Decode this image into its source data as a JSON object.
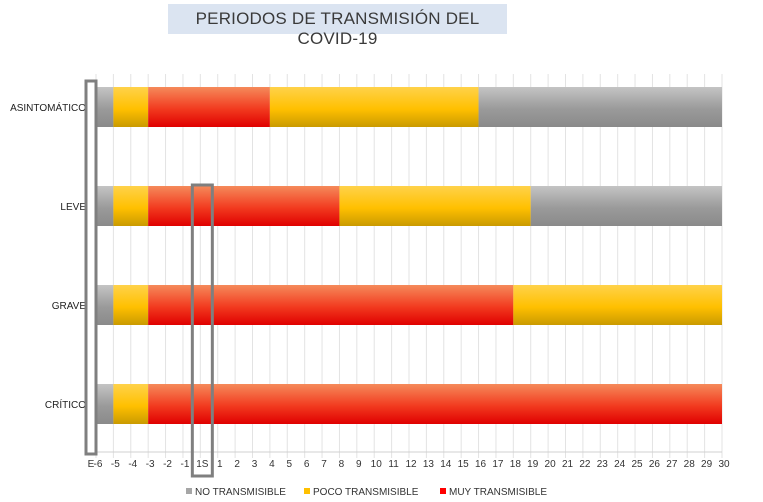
{
  "chart_data": {
    "type": "bar",
    "orientation": "horizontal-stacked",
    "title": "PERIODOS DE TRANSMISIÓN DEL COVID-19",
    "categories": [
      "ASINTOMÁTICO",
      "LEVE",
      "GRAVE",
      "CRÍTICO"
    ],
    "x_ticks": [
      "-6",
      "-5",
      "-4",
      "-3",
      "-2",
      "-1",
      "1S",
      "1",
      "2",
      "3",
      "4",
      "5",
      "6",
      "7",
      "8",
      "9",
      "10",
      "11",
      "12",
      "13",
      "14",
      "15",
      "16",
      "17",
      "18",
      "19",
      "20",
      "21",
      "22",
      "23",
      "24",
      "25",
      "26",
      "27",
      "28",
      "29",
      "30"
    ],
    "x_tick_prefix": "E",
    "series": [
      {
        "name": "NO TRANSMISIBLE",
        "color": "#a6a6a6"
      },
      {
        "name": "POCO TRANSMISIBLE",
        "color": "#ffc000"
      },
      {
        "name": "MUY TRANSMISIBLE",
        "color": "#ff0000"
      }
    ],
    "segments": [
      [
        {
          "series": "NO TRANSMISIBLE",
          "start": -6,
          "end": -5
        },
        {
          "series": "POCO TRANSMISIBLE",
          "start": -5,
          "end": -3
        },
        {
          "series": "MUY TRANSMISIBLE",
          "start": -3,
          "end": 4
        },
        {
          "series": "POCO TRANSMISIBLE",
          "start": 4,
          "end": 16
        },
        {
          "series": "NO TRANSMISIBLE",
          "start": 16,
          "end": 30
        }
      ],
      [
        {
          "series": "NO TRANSMISIBLE",
          "start": -6,
          "end": -5
        },
        {
          "series": "POCO TRANSMISIBLE",
          "start": -5,
          "end": -3
        },
        {
          "series": "MUY TRANSMISIBLE",
          "start": -3,
          "end": 8
        },
        {
          "series": "POCO TRANSMISIBLE",
          "start": 8,
          "end": 19
        },
        {
          "series": "NO TRANSMISIBLE",
          "start": 19,
          "end": 30
        }
      ],
      [
        {
          "series": "NO TRANSMISIBLE",
          "start": -6,
          "end": -5
        },
        {
          "series": "POCO TRANSMISIBLE",
          "start": -5,
          "end": -3
        },
        {
          "series": "MUY TRANSMISIBLE",
          "start": -3,
          "end": 18
        },
        {
          "series": "POCO TRANSMISIBLE",
          "start": 18,
          "end": 30
        }
      ],
      [
        {
          "series": "NO TRANSMISIBLE",
          "start": -6,
          "end": -5
        },
        {
          "series": "POCO TRANSMISIBLE",
          "start": -5,
          "end": -3
        },
        {
          "series": "MUY TRANSMISIBLE",
          "start": -3,
          "end": 30
        }
      ]
    ],
    "highlight_tick": "1S",
    "gridlines": true,
    "legend_position": "bottom"
  }
}
